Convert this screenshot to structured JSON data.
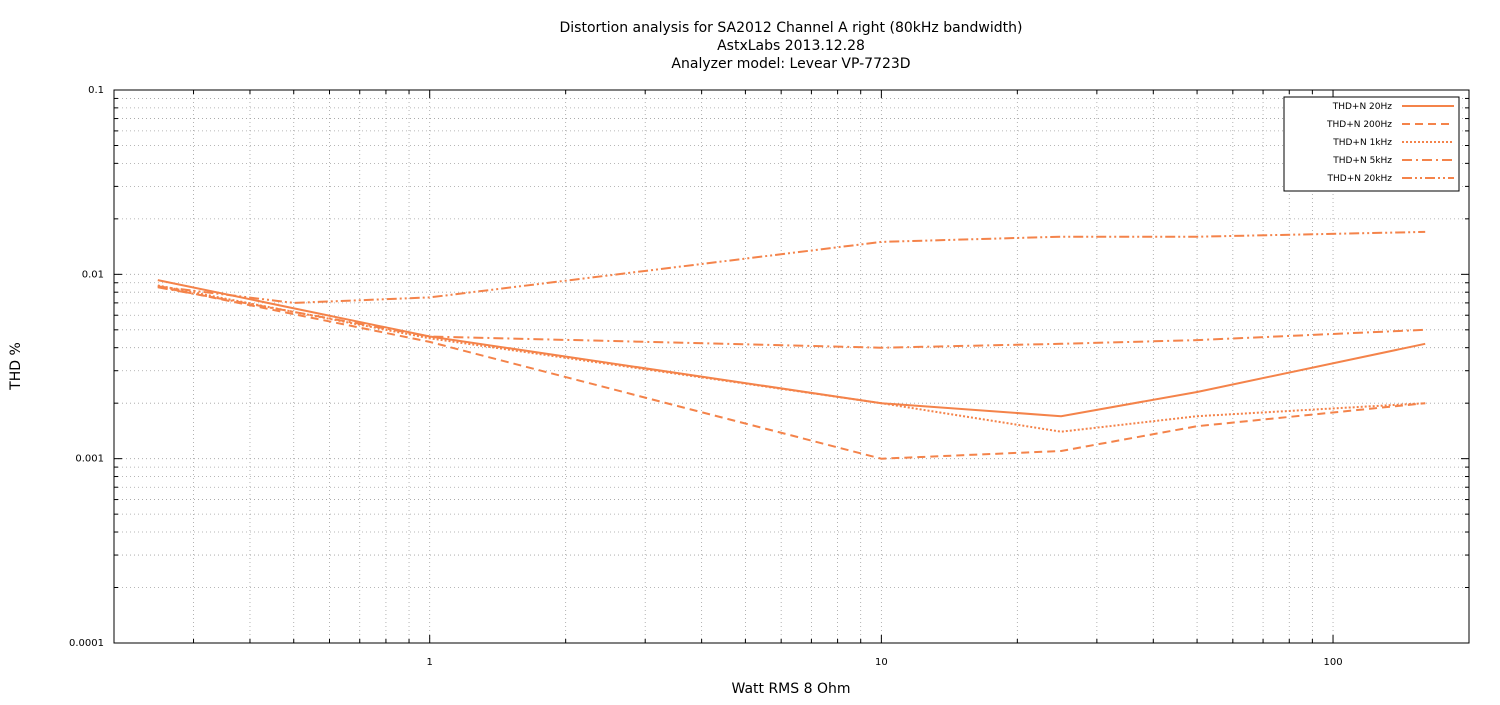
{
  "chart_data": {
    "type": "line",
    "title_lines": [
      "Distortion analysis for SA2012 Channel A right (80kHz bandwidth)",
      "AstxLabs 2013.12.28",
      "Analyzer model: Levear VP-7723D"
    ],
    "xlabel": "Watt RMS 8 Ohm",
    "ylabel": "THD %",
    "x_scale": "log",
    "y_scale": "log",
    "xlim": [
      0.2,
      200
    ],
    "ylim": [
      0.0001,
      0.1
    ],
    "x_tick_labels": [
      "1",
      "10",
      "100"
    ],
    "y_tick_labels": [
      "0.1",
      "0.01",
      "0.001",
      "0.0001"
    ],
    "grid": true,
    "legend_position": "top-right",
    "line_color": "#F4834A",
    "series": [
      {
        "name": "THD+N 20Hz",
        "dash": "solid",
        "x": [
          0.25,
          1,
          10,
          25,
          50,
          160
        ],
        "y": [
          0.0093,
          0.0046,
          0.002,
          0.0017,
          0.0023,
          0.0042
        ]
      },
      {
        "name": "THD+N 200Hz",
        "dash": "dashed",
        "x": [
          0.25,
          1,
          10,
          25,
          50,
          160
        ],
        "y": [
          0.0086,
          0.0043,
          0.001,
          0.0011,
          0.0015,
          0.002
        ]
      },
      {
        "name": "THD+N 1kHz",
        "dash": "dotted",
        "x": [
          0.25,
          1,
          10,
          25,
          50,
          160
        ],
        "y": [
          0.0087,
          0.0045,
          0.002,
          0.0014,
          0.0017,
          0.002
        ]
      },
      {
        "name": "THD+N 5kHz",
        "dash": "dashdot",
        "x": [
          0.25,
          1,
          10,
          25,
          50,
          160
        ],
        "y": [
          0.0085,
          0.0046,
          0.004,
          0.0042,
          0.0044,
          0.005
        ]
      },
      {
        "name": "THD+N 20kHz",
        "dash": "dashdotdot",
        "x": [
          0.25,
          0.5,
          1,
          10,
          25,
          50,
          160
        ],
        "y": [
          0.0086,
          0.007,
          0.0075,
          0.015,
          0.016,
          0.016,
          0.017
        ]
      }
    ]
  }
}
